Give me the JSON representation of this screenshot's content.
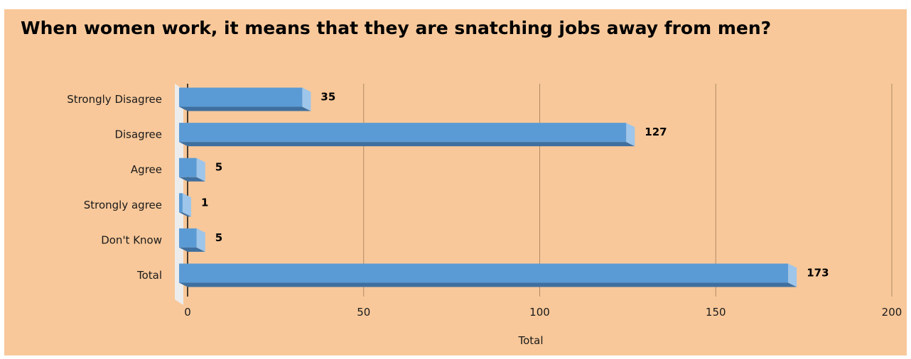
{
  "chart_data": {
    "type": "bar",
    "orientation": "horizontal",
    "style": "3d",
    "title": "When women work, it means that they are snatching jobs away from men?",
    "categories": [
      "Strongly Disagree",
      "Disagree",
      "Agree",
      "Strongly agree",
      "Don't Know",
      "Total"
    ],
    "series": [
      {
        "values": [
          35,
          127,
          5,
          1,
          5,
          173
        ]
      }
    ],
    "data_labels": [
      "35",
      "127",
      "5",
      "1",
      "5",
      "173"
    ],
    "xlabel": "Total",
    "ylabel": "",
    "xlim": [
      0,
      200
    ],
    "x_ticks": [
      0,
      50,
      100,
      150,
      200
    ],
    "x_tick_labels": [
      "0",
      "50",
      "100",
      "150",
      "200"
    ],
    "grid": "vertical",
    "legend": "none",
    "colors": {
      "background": "#f8c89a",
      "bar_front": "#5b9bd5",
      "bar_side": "#9ec5ea",
      "bar_bottom": "#3f6f9e",
      "gridline": "#b08b64",
      "floor": "#ececec"
    }
  }
}
